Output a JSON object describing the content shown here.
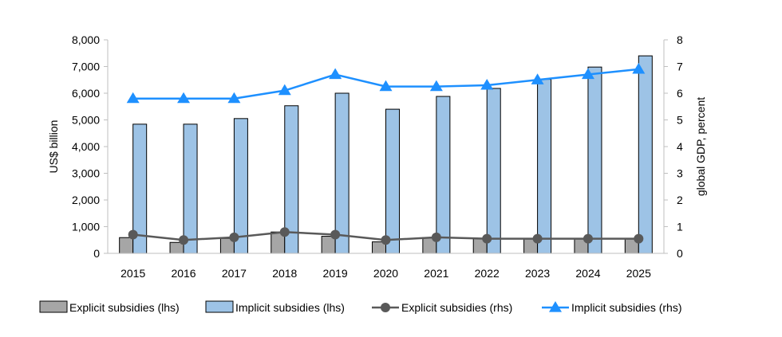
{
  "chart_data": {
    "type": "bar",
    "categories": [
      "2015",
      "2016",
      "2017",
      "2018",
      "2019",
      "2020",
      "2021",
      "2022",
      "2023",
      "2024",
      "2025"
    ],
    "ylabel_left": "US$ billion",
    "ylabel_right": "global GDP, percent",
    "ylim_left": [
      0,
      8000
    ],
    "ylim_right": [
      0,
      8
    ],
    "yticks_left": [
      "0",
      "1,000",
      "2,000",
      "3,000",
      "4,000",
      "5,000",
      "6,000",
      "7,000",
      "8,000"
    ],
    "yticks_right": [
      "0",
      "1",
      "2",
      "3",
      "4",
      "5",
      "6",
      "7",
      "8"
    ],
    "grid": false,
    "legend_position": "bottom",
    "series": [
      {
        "name": "Explicit subsidies (lhs)",
        "kind": "bar",
        "axis": "left",
        "color": "#a6a6a6",
        "values": [
          590,
          410,
          560,
          800,
          640,
          430,
          590,
          560,
          560,
          540,
          540
        ]
      },
      {
        "name": "Implicit subsidies (lhs)",
        "kind": "bar",
        "axis": "left",
        "color": "#9dc3e6",
        "values": [
          4840,
          4840,
          5050,
          5530,
          6000,
          5400,
          5880,
          6180,
          6520,
          6980,
          7400
        ]
      },
      {
        "name": "Explicit subsidies (rhs)",
        "kind": "line",
        "axis": "right",
        "color": "#595959",
        "marker": "circle",
        "values": [
          0.7,
          0.5,
          0.6,
          0.8,
          0.7,
          0.5,
          0.6,
          0.55,
          0.55,
          0.55,
          0.55
        ]
      },
      {
        "name": "Implicit subsidies (rhs)",
        "kind": "line",
        "axis": "right",
        "color": "#1e90ff",
        "marker": "triangle",
        "values": [
          5.8,
          5.8,
          5.8,
          6.1,
          6.7,
          6.25,
          6.25,
          6.3,
          6.5,
          6.7,
          6.9
        ]
      }
    ]
  }
}
